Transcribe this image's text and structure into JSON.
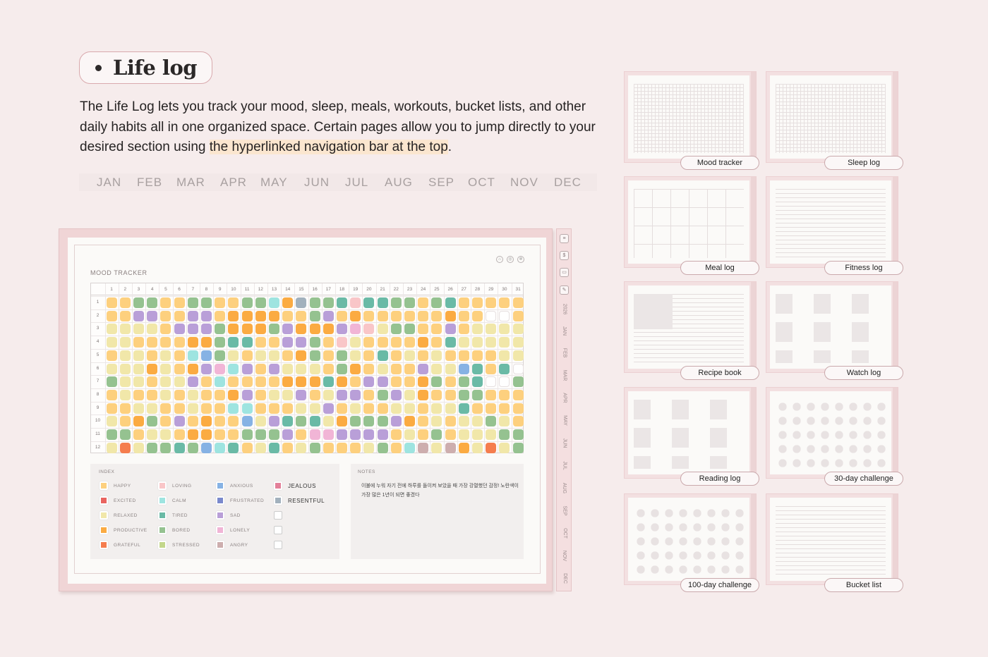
{
  "title": "Life log",
  "description": {
    "part1": "The Life Log lets you track your mood, sleep, meals, workouts, bucket lists, and other daily habits all in one organized space. Certain pages allow you to jump directly to your desired section using ",
    "highlight": "the hyperlinked navigation bar at the top",
    "end": "."
  },
  "months": [
    "JAN",
    "FEB",
    "MAR",
    "APR",
    "MAY",
    "JUN",
    "JUL",
    "AUG",
    "SEP",
    "OCT",
    "NOV",
    "DEC"
  ],
  "planner": {
    "page_title": "MOOD TRACKER",
    "side_tabs": [
      "2026",
      "JAN",
      "FEB",
      "MAR",
      "APR",
      "MAY",
      "JUN",
      "JUL",
      "AUG",
      "SEP",
      "OCT",
      "NOV",
      "DEC"
    ],
    "days": [
      "1",
      "2",
      "3",
      "4",
      "5",
      "6",
      "7",
      "8",
      "9",
      "10",
      "11",
      "12",
      "13",
      "14",
      "15",
      "16",
      "17",
      "18",
      "19",
      "20",
      "21",
      "22",
      "23",
      "24",
      "25",
      "26",
      "27",
      "28",
      "29",
      "30",
      "31"
    ],
    "rows": [
      "1",
      "2",
      "3",
      "4",
      "5",
      "6",
      "7",
      "8",
      "9",
      "10",
      "11",
      "12"
    ],
    "mood_grid": [
      "YYGGYYGGYYGGCOAGGTKTTGGYGTYYYY",
      "YYLLYYLLYOOOOYYGLYOYYYYYYOYYFF",
      "RRRRYPPPGOOOGLOOOLWKRGGYYPYRRR",
      "RRYYYYOOGTTYYPLGYKRYYYYOYTRRRR",
      "YRRYRYCBGRYRRYOGYGRYTYRYRYYY",
      "RRRORYOLWCLYLRRRYGOYRYYLRRBTYTFF",
      "GRRYRRLYCYYYYOOOTOYLLYYOGYGTFF",
      "YRYYRYRYYOLYRRPYRLPYGPROYYGGYY",
      "YYRRYYRYYCCYYYRRPYRYYRRYRRTYY",
      "RYOGYPYOYYBRPTGTROGGGPOYRYRRG",
      "GGYRRYOOYYGGGPYWWPPPPYRYGYRRR",
      "RQRGGTGBCTYRTYRGYYYRGYCSRSO"
    ],
    "legend_title": "INDEX",
    "legend": [
      {
        "label": "HAPPY",
        "color": "#fdd07e"
      },
      {
        "label": "EXCITED",
        "color": "#e9645f"
      },
      {
        "label": "RELAXED",
        "color": "#f1e7a9"
      },
      {
        "label": "PRODUCTIVE",
        "color": "#fbab42"
      },
      {
        "label": "GRATEFUL",
        "color": "#f57d4e"
      },
      {
        "label": "LOVING",
        "color": "#f9c6c8"
      },
      {
        "label": "CALM",
        "color": "#9ee4e0"
      },
      {
        "label": "TIRED",
        "color": "#6abaa6"
      },
      {
        "label": "BORED",
        "color": "#95c290"
      },
      {
        "label": "STRESSED",
        "color": "#c3d78b"
      },
      {
        "label": "ANXIOUS",
        "color": "#86b2e4"
      },
      {
        "label": "FRUSTRATED",
        "color": "#7a89cc"
      },
      {
        "label": "SAD",
        "color": "#b99fd8"
      },
      {
        "label": "LONELY",
        "color": "#f1b5d6"
      },
      {
        "label": "ANGRY",
        "color": "#cdaeae"
      },
      {
        "label": "JEALOUS",
        "color": "#e38099"
      },
      {
        "label": "RESENTFUL",
        "color": "#a2b1bd"
      }
    ],
    "notes_title": "NOTES",
    "notes_text": "이불에 누워 자기 전에 하루를 돌이켜 보았을 때 가장 강렬했던 감정! 노란색이 가장 많은 1년이 되면 좋겠다"
  },
  "thumbnails": [
    {
      "label": "Mood tracker",
      "pattern": "grid"
    },
    {
      "label": "Sleep log",
      "pattern": "grid"
    },
    {
      "label": "Meal log",
      "pattern": "cols"
    },
    {
      "label": "Fitness log",
      "pattern": "lines"
    },
    {
      "label": "Recipe book",
      "pattern": "recipe"
    },
    {
      "label": "Watch log",
      "pattern": "blocks"
    },
    {
      "label": "Reading log",
      "pattern": "blocks"
    },
    {
      "label": "30-day challenge",
      "pattern": "boxes"
    },
    {
      "label": "100-day challenge",
      "pattern": "boxes"
    },
    {
      "label": "Bucket list",
      "pattern": "lines"
    }
  ],
  "colors": {
    "background": "#f6ecec",
    "accent_pink": "#f0d5d6",
    "highlight": "#fbe6cf"
  }
}
